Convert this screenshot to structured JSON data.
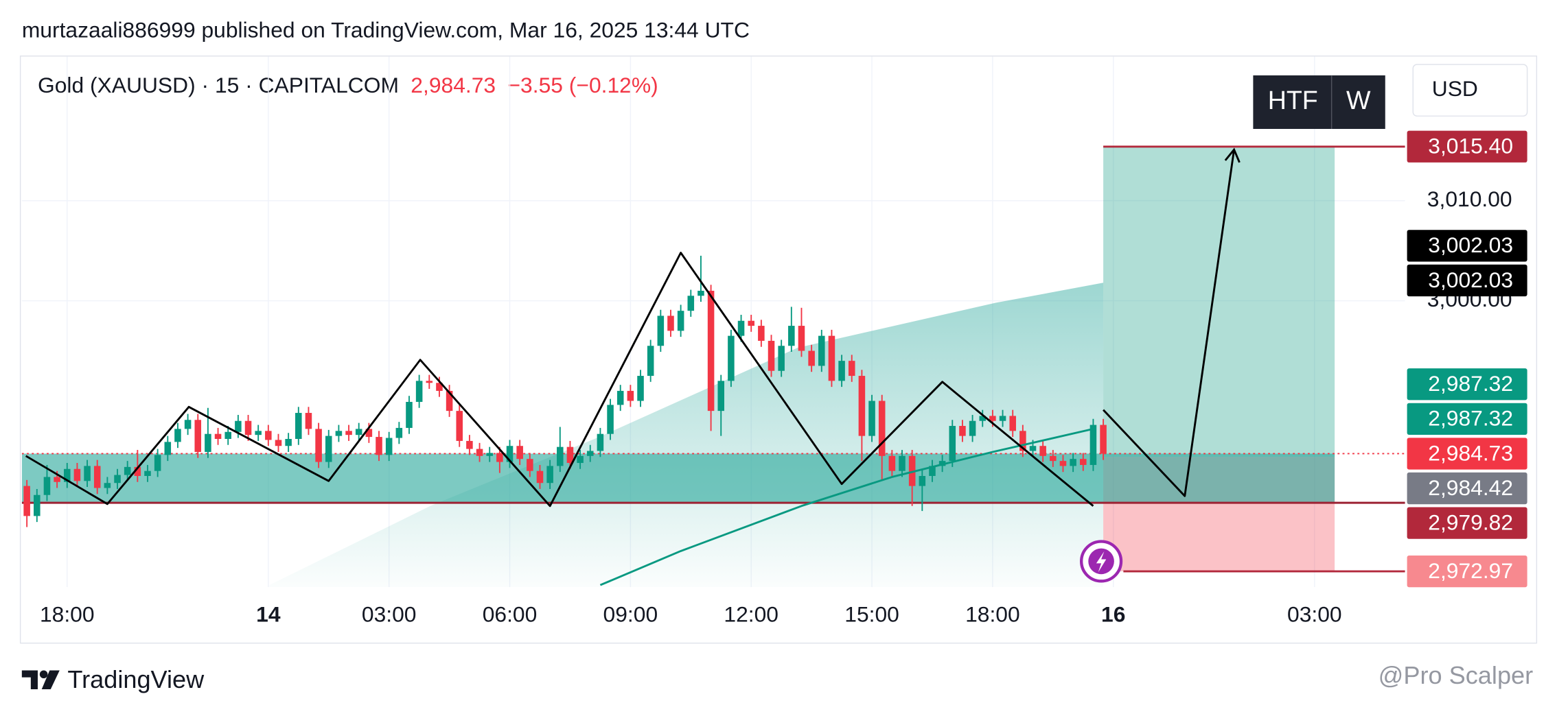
{
  "header": "murtazaali886999 published on TradingView.com, Mar 16, 2025 13:44 UTC",
  "legend": {
    "symbol": "Gold (XAUUSD) · 15 · CAPITALCOM",
    "price": "2,984.73",
    "change": "−3.55 (−0.12%)"
  },
  "buttons": [
    "HTF",
    "W"
  ],
  "currency": "USD",
  "footer": "TradingView",
  "watermark": "@Pro Scalper",
  "chart_data": {
    "type": "candlestick",
    "up_color": "#089981",
    "down_color": "#f23645",
    "xlim": [
      -0.5,
      137
    ],
    "ylim": [
      2971.4,
      3024.4
    ],
    "xticks": [
      {
        "value": 4,
        "label": "18:00"
      },
      {
        "value": 24,
        "label": "14",
        "bold": true
      },
      {
        "value": 36,
        "label": "03:00"
      },
      {
        "value": 48,
        "label": "06:00"
      },
      {
        "value": 60,
        "label": "09:00"
      },
      {
        "value": 72,
        "label": "12:00"
      },
      {
        "value": 84,
        "label": "15:00"
      },
      {
        "value": 96,
        "label": "18:00"
      },
      {
        "value": 108,
        "label": "16",
        "bold": true
      },
      {
        "value": 128,
        "label": "03:00"
      }
    ],
    "yticks": [
      {
        "value": 3010,
        "label": "3,010.00"
      },
      {
        "value": 3000,
        "label": "3,000.00"
      }
    ],
    "grid": true,
    "candles": [
      [
        2981.5,
        2982.1,
        2977.4,
        2978.5
      ],
      [
        2978.5,
        2981.2,
        2977.9,
        2980.6
      ],
      [
        2980.6,
        2983.6,
        2980.0,
        2982.4
      ],
      [
        2982.4,
        2983.0,
        2981.3,
        2981.9
      ],
      [
        2981.9,
        2983.8,
        2981.3,
        2983.2
      ],
      [
        2983.2,
        2983.8,
        2981.4,
        2982.0
      ],
      [
        2982.0,
        2984.1,
        2981.4,
        2983.5
      ],
      [
        2983.5,
        2984.1,
        2980.7,
        2981.3
      ],
      [
        2981.3,
        2982.4,
        2980.7,
        2981.8
      ],
      [
        2981.8,
        2983.2,
        2981.2,
        2982.6
      ],
      [
        2982.6,
        2984.0,
        2982.0,
        2983.4
      ],
      [
        2983.4,
        2985.1,
        2981.9,
        2982.5
      ],
      [
        2982.5,
        2983.6,
        2981.9,
        2983.0
      ],
      [
        2983.0,
        2985.2,
        2982.4,
        2984.6
      ],
      [
        2984.6,
        2986.5,
        2984.0,
        2985.9
      ],
      [
        2985.9,
        2987.8,
        2985.3,
        2987.2
      ],
      [
        2987.2,
        2988.7,
        2986.6,
        2988.1
      ],
      [
        2988.1,
        2988.7,
        2984.3,
        2984.9
      ],
      [
        2984.9,
        2989.3,
        2984.3,
        2986.7
      ],
      [
        2986.7,
        2987.3,
        2985.6,
        2986.2
      ],
      [
        2986.2,
        2987.5,
        2985.6,
        2986.9
      ],
      [
        2986.9,
        2988.6,
        2986.3,
        2988.0
      ],
      [
        2988.0,
        2988.6,
        2986.0,
        2986.6
      ],
      [
        2986.6,
        2987.6,
        2986.0,
        2987.0
      ],
      [
        2987.0,
        2987.6,
        2985.5,
        2986.1
      ],
      [
        2986.1,
        2986.7,
        2984.9,
        2985.5
      ],
      [
        2985.5,
        2986.8,
        2984.9,
        2986.2
      ],
      [
        2986.2,
        2989.4,
        2985.6,
        2988.8
      ],
      [
        2988.8,
        2989.4,
        2986.6,
        2987.2
      ],
      [
        2987.2,
        2987.8,
        2983.3,
        2983.9
      ],
      [
        2983.9,
        2987.1,
        2983.3,
        2986.5
      ],
      [
        2986.5,
        2987.6,
        2985.9,
        2987.0
      ],
      [
        2987.0,
        2987.6,
        2986.0,
        2986.6
      ],
      [
        2986.6,
        2987.8,
        2986.0,
        2987.2
      ],
      [
        2987.2,
        2987.8,
        2985.8,
        2986.4
      ],
      [
        2986.4,
        2987.0,
        2984.0,
        2984.6
      ],
      [
        2984.6,
        2986.9,
        2984.0,
        2986.3
      ],
      [
        2986.3,
        2987.9,
        2985.7,
        2987.3
      ],
      [
        2987.3,
        2990.5,
        2986.7,
        2989.9
      ],
      [
        2989.9,
        2992.6,
        2989.3,
        2992.0
      ],
      [
        2992.0,
        2992.6,
        2991.2,
        2991.8
      ],
      [
        2991.8,
        2992.4,
        2990.4,
        2991.0
      ],
      [
        2991.0,
        2991.6,
        2988.4,
        2989.0
      ],
      [
        2989.0,
        2989.6,
        2985.4,
        2986.0
      ],
      [
        2986.0,
        2986.6,
        2984.6,
        2985.2
      ],
      [
        2985.2,
        2985.8,
        2983.9,
        2984.5
      ],
      [
        2984.5,
        2985.4,
        2983.9,
        2984.8
      ],
      [
        2984.8,
        2985.4,
        2982.8,
        2983.9
      ],
      [
        2983.9,
        2986.1,
        2983.3,
        2985.5
      ],
      [
        2985.5,
        2986.1,
        2983.6,
        2984.2
      ],
      [
        2984.2,
        2984.8,
        2982.4,
        2983.0
      ],
      [
        2983.0,
        2983.6,
        2981.2,
        2981.8
      ],
      [
        2981.8,
        2984.1,
        2981.2,
        2983.5
      ],
      [
        2983.5,
        2987.4,
        2982.9,
        2985.4
      ],
      [
        2985.4,
        2986.0,
        2983.2,
        2983.8
      ],
      [
        2983.8,
        2985.1,
        2983.2,
        2984.5
      ],
      [
        2984.5,
        2985.6,
        2983.9,
        2985.0
      ],
      [
        2985.0,
        2987.3,
        2984.4,
        2986.7
      ],
      [
        2986.7,
        2990.2,
        2986.1,
        2989.6
      ],
      [
        2989.6,
        2991.6,
        2989.0,
        2991.0
      ],
      [
        2991.0,
        2991.6,
        2989.4,
        2990.0
      ],
      [
        2990.0,
        2993.1,
        2989.4,
        2992.5
      ],
      [
        2992.5,
        2996.1,
        2991.9,
        2995.5
      ],
      [
        2995.5,
        2999.1,
        2994.9,
        2998.5
      ],
      [
        2998.5,
        2999.1,
        2996.4,
        2997.0
      ],
      [
        2997.0,
        2999.6,
        2996.4,
        2999.0
      ],
      [
        2999.0,
        3001.1,
        2998.4,
        3000.5
      ],
      [
        3000.5,
        3004.5,
        2999.9,
        3001.0
      ],
      [
        3001.0,
        3001.6,
        2987.0,
        2989.0
      ],
      [
        2989.0,
        2992.6,
        2986.5,
        2992.0
      ],
      [
        2992.0,
        2997.1,
        2991.4,
        2996.5
      ],
      [
        2996.5,
        2998.6,
        2995.9,
        2998.0
      ],
      [
        2998.0,
        2998.6,
        2996.9,
        2997.5
      ],
      [
        2997.5,
        2998.1,
        2995.4,
        2996.0
      ],
      [
        2996.0,
        2996.6,
        2992.4,
        2993.0
      ],
      [
        2993.0,
        2996.1,
        2992.4,
        2995.5
      ],
      [
        2995.5,
        2999.4,
        2994.9,
        2997.5
      ],
      [
        2997.5,
        2999.3,
        2994.4,
        2995.0
      ],
      [
        2995.0,
        2995.6,
        2992.9,
        2993.5
      ],
      [
        2993.5,
        2997.1,
        2992.9,
        2996.5
      ],
      [
        2996.5,
        2997.1,
        2991.4,
        2992.0
      ],
      [
        2992.0,
        2994.6,
        2991.4,
        2994.0
      ],
      [
        2994.0,
        2994.6,
        2991.9,
        2992.5
      ],
      [
        2992.5,
        2993.1,
        2984.0,
        2986.5
      ],
      [
        2986.5,
        2990.6,
        2985.9,
        2990.0
      ],
      [
        2990.0,
        2990.6,
        2982.0,
        2984.5
      ],
      [
        2984.5,
        2985.1,
        2982.4,
        2983.0
      ],
      [
        2983.0,
        2985.1,
        2982.4,
        2984.5
      ],
      [
        2984.5,
        2985.1,
        2979.5,
        2981.5
      ],
      [
        2981.5,
        2983.1,
        2979.0,
        2982.5
      ],
      [
        2982.5,
        2984.1,
        2981.9,
        2983.5
      ],
      [
        2983.5,
        2984.6,
        2982.9,
        2984.0
      ],
      [
        2984.0,
        2988.1,
        2983.4,
        2987.5
      ],
      [
        2987.5,
        2988.1,
        2985.9,
        2986.5
      ],
      [
        2986.5,
        2988.6,
        2985.9,
        2988.0
      ],
      [
        2988.0,
        2989.1,
        2987.4,
        2988.5
      ],
      [
        2988.5,
        2989.1,
        2987.4,
        2988.0
      ],
      [
        2988.0,
        2989.1,
        2987.4,
        2988.5
      ],
      [
        2988.5,
        2989.1,
        2986.4,
        2987.0
      ],
      [
        2987.0,
        2987.6,
        2984.4,
        2985.0
      ],
      [
        2985.0,
        2986.1,
        2984.4,
        2985.5
      ],
      [
        2985.5,
        2986.1,
        2983.9,
        2984.5
      ],
      [
        2984.5,
        2985.1,
        2983.4,
        2984.0
      ],
      [
        2984.0,
        2984.6,
        2982.9,
        2983.5
      ],
      [
        2983.5,
        2984.8,
        2982.9,
        2984.2
      ],
      [
        2984.2,
        2984.8,
        2983.0,
        2983.6
      ],
      [
        2983.6,
        2988.2,
        2983.0,
        2987.6
      ],
      [
        2987.6,
        2988.2,
        2984.1,
        2984.73
      ]
    ],
    "cloud": {
      "x": [
        24.1,
        40.1,
        56.9,
        76.6,
        96.3,
        107
      ],
      "values": [
        2971.6,
        2979.5,
        2986.4,
        2995.3,
        2999.8,
        3001.8
      ]
    },
    "ma": {
      "color": "#089981",
      "x": [
        57,
        65,
        77,
        86,
        96,
        106
      ],
      "values": [
        2971.6,
        2975,
        2979.5,
        2982.4,
        2984.9,
        2987.2
      ]
    },
    "zigzag": {
      "x": [
        -0.1,
        8,
        16.1,
        30,
        39.1,
        52,
        65,
        81,
        91,
        106
      ],
      "values": [
        2984.5,
        2979.7,
        2989.4,
        2982,
        2994.1,
        2979.5,
        3004.8,
        2981.7,
        2991.9,
        2979.5
      ]
    },
    "projection": {
      "x": [
        107,
        115.1,
        120
      ],
      "values": [
        2989.1,
        2980.5,
        3015.1
      ]
    },
    "range_box": {
      "x": [
        -0.5,
        130
      ],
      "values": [
        2979.82,
        2984.73
      ]
    },
    "position": {
      "x": [
        107,
        130
      ],
      "target": 3015.4,
      "entry": 2984.42,
      "stop": 2972.97
    },
    "levels": [
      {
        "value": 3015.4,
        "x0": 107,
        "color": "#b2283b"
      },
      {
        "value": 2972.97,
        "x0": 109,
        "color": "#b2283b"
      },
      {
        "value": 2979.82,
        "x0": -0.5,
        "color": "#9c2233"
      }
    ],
    "current_price": {
      "value": 2984.73,
      "color": "#f23645"
    },
    "price_labels": [
      {
        "value": 3015.4,
        "label": "3,015.40",
        "color": "#b2283b"
      },
      {
        "value": 3002.03,
        "label": "3,002.03",
        "color": "#000000"
      },
      {
        "value": 3002.03,
        "label": "3,002.03",
        "color": "#000000"
      },
      {
        "value": 2987.32,
        "label": "2,987.32",
        "color": "#089981"
      },
      {
        "value": 2987.32,
        "label": "2,987.32",
        "color": "#089981"
      },
      {
        "value": 2984.73,
        "label": "2,984.73",
        "color": "#f23645",
        "current": true
      },
      {
        "value": 2984.42,
        "label": "2,984.42",
        "color": "#787b86"
      },
      {
        "value": 2979.82,
        "label": "2,979.82",
        "color": "#b2283b"
      },
      {
        "value": 2972.97,
        "label": "2,972.97",
        "color": "#f7898f"
      }
    ]
  }
}
